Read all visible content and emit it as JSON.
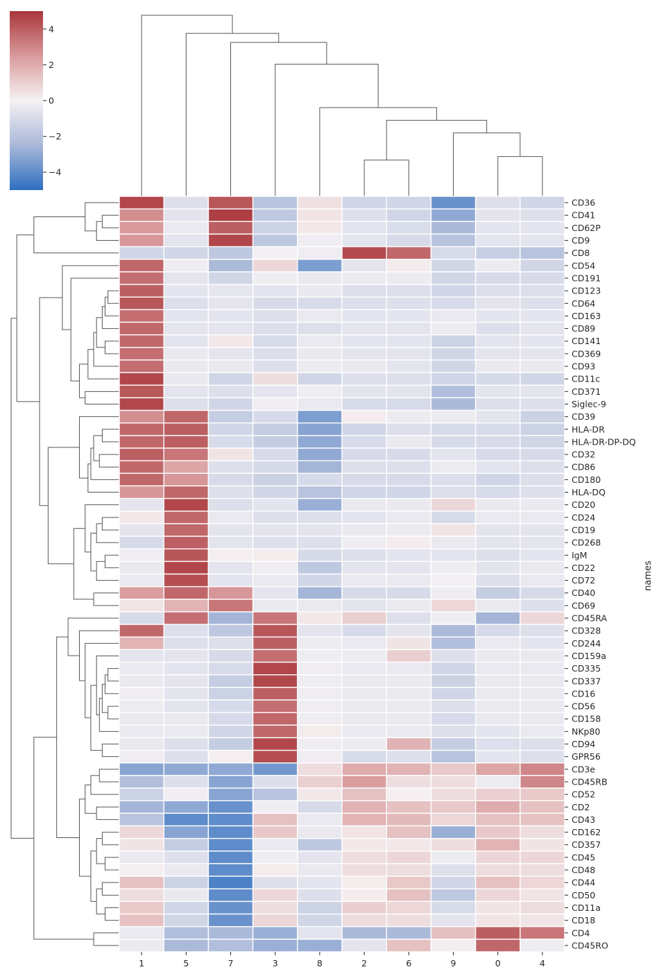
{
  "chart_data": {
    "type": "heatmap",
    "title": "",
    "xlabel": "",
    "ylabel": "names",
    "colormap": "vlag",
    "colormap_stops": [
      "#2e6fc0",
      "#a9b8d9",
      "#f5f2f3",
      "#d99a9c",
      "#a9373b"
    ],
    "vmin": -5,
    "vmax": 5,
    "colorbar_ticks": [
      4,
      2,
      0,
      -2,
      -4
    ],
    "colorbar_labels": [
      "4",
      "2",
      "0",
      "−2",
      "−4"
    ],
    "columns": [
      "1",
      "5",
      "7",
      "3",
      "8",
      "2",
      "6",
      "9",
      "0",
      "4"
    ],
    "rows": [
      "CD36",
      "CD41",
      "CD62P",
      "CD9",
      "CD8",
      "CD54",
      "CD191",
      "CD123",
      "CD64",
      "CD163",
      "CD89",
      "CD141",
      "CD369",
      "CD93",
      "CD11c",
      "CD371",
      "Siglec-9",
      "CD39",
      "HLA-DR",
      "HLA-DR-DP-DQ",
      "CD32",
      "CD86",
      "CD180",
      "HLA-DQ",
      "CD20",
      "CD24",
      "CD19",
      "CD268",
      "IgM",
      "CD22",
      "CD72",
      "CD40",
      "CD69",
      "CD45RA",
      "CD328",
      "CD244",
      "CD159a",
      "CD335",
      "CD337",
      "CD16",
      "CD56",
      "CD158",
      "NKp80",
      "CD94",
      "GPR56",
      "CD3e",
      "CD45RB",
      "CD52",
      "CD2",
      "CD43",
      "CD162",
      "CD357",
      "CD45",
      "CD48",
      "CD44",
      "CD50",
      "CD11a",
      "CD18",
      "CD4",
      "CD45RO"
    ],
    "values": [
      [
        4.6,
        -0.8,
        4.2,
        -2.0,
        0.5,
        -1.2,
        -1.2,
        -3.8,
        -0.8,
        -1.2
      ],
      [
        2.8,
        -0.6,
        4.8,
        -1.8,
        0.4,
        -0.8,
        -1.2,
        -3.0,
        -0.6,
        -0.8
      ],
      [
        2.5,
        -0.4,
        4.0,
        -1.4,
        0.3,
        -0.6,
        -0.9,
        -2.4,
        -0.6,
        -0.6
      ],
      [
        2.6,
        -0.6,
        4.6,
        -1.8,
        -0.2,
        -0.6,
        -1.0,
        -2.0,
        -0.6,
        -0.6
      ],
      [
        -1.2,
        -1.2,
        -1.8,
        -0.1,
        -0.2,
        4.5,
        3.8,
        -1.0,
        -1.5,
        -2.0
      ],
      [
        3.8,
        -0.2,
        -2.4,
        0.8,
        -3.4,
        -0.6,
        0.2,
        -1.2,
        -0.3,
        -1.2
      ],
      [
        3.6,
        -0.6,
        -1.2,
        -0.2,
        -0.4,
        -0.3,
        -0.3,
        -1.2,
        -1.0,
        -1.0
      ],
      [
        4.0,
        -0.6,
        -0.5,
        -0.6,
        -0.4,
        -0.8,
        -0.8,
        -1.2,
        -0.8,
        -0.8
      ],
      [
        4.2,
        -0.8,
        -0.6,
        -1.0,
        -1.0,
        -0.8,
        -0.8,
        -1.0,
        -0.6,
        -0.8
      ],
      [
        3.6,
        -0.6,
        -0.6,
        -0.8,
        -0.4,
        -0.6,
        -0.6,
        -0.4,
        -0.6,
        -0.6
      ],
      [
        3.8,
        -0.6,
        -0.6,
        -0.8,
        -0.8,
        -0.6,
        -0.6,
        -0.3,
        -0.8,
        -0.6
      ],
      [
        3.8,
        -0.6,
        0.3,
        -1.0,
        -0.4,
        -0.6,
        -0.6,
        -1.4,
        -0.6,
        -0.6
      ],
      [
        3.6,
        -0.4,
        -0.6,
        -0.8,
        -0.4,
        -0.6,
        -0.6,
        -1.2,
        -0.6,
        -0.6
      ],
      [
        3.6,
        -0.4,
        -0.4,
        -0.8,
        -0.3,
        -0.4,
        -0.6,
        -1.2,
        -0.4,
        -0.4
      ],
      [
        4.6,
        -0.4,
        -1.2,
        0.6,
        -1.2,
        -0.8,
        -0.8,
        -1.2,
        -1.0,
        -1.2
      ],
      [
        4.2,
        -0.6,
        -0.8,
        -0.6,
        -0.2,
        -0.6,
        -0.6,
        -2.2,
        -0.6,
        -0.6
      ],
      [
        4.6,
        -0.8,
        -1.2,
        -0.2,
        -0.4,
        -1.0,
        -1.0,
        -2.4,
        -0.8,
        -0.8
      ],
      [
        2.8,
        3.8,
        -1.6,
        -1.0,
        -3.4,
        0.2,
        -0.3,
        -0.3,
        -0.6,
        -1.4
      ],
      [
        3.8,
        4.0,
        -1.2,
        -1.6,
        -3.2,
        -1.2,
        -0.8,
        -1.0,
        -1.0,
        -1.4
      ],
      [
        3.8,
        4.0,
        -1.0,
        -1.6,
        -3.0,
        -1.0,
        -0.4,
        -1.0,
        -1.0,
        -1.2
      ],
      [
        4.0,
        3.4,
        0.4,
        -1.0,
        -3.0,
        -1.0,
        -1.0,
        -0.6,
        -1.0,
        -1.0
      ],
      [
        3.8,
        2.2,
        -0.8,
        -1.0,
        -2.6,
        -0.8,
        -0.8,
        -0.3,
        -0.6,
        -0.8
      ],
      [
        3.8,
        2.6,
        -1.0,
        -1.4,
        -1.0,
        -1.0,
        -1.0,
        -0.8,
        -1.2,
        -0.8
      ],
      [
        2.6,
        3.8,
        -0.8,
        -1.2,
        -2.0,
        -1.2,
        -1.2,
        -0.8,
        -1.0,
        -0.8
      ],
      [
        -0.6,
        4.6,
        -0.8,
        -0.6,
        -2.8,
        -0.4,
        -0.4,
        0.8,
        -0.4,
        -0.4
      ],
      [
        0.3,
        3.8,
        -0.4,
        -0.8,
        -0.8,
        -0.6,
        -0.4,
        -1.0,
        -0.4,
        -0.4
      ],
      [
        -0.6,
        3.8,
        -0.6,
        -0.6,
        -0.6,
        -0.4,
        -0.3,
        0.4,
        -0.6,
        -0.6
      ],
      [
        -1.0,
        4.0,
        -0.6,
        -0.8,
        -0.8,
        -0.2,
        0.2,
        -0.4,
        -0.6,
        -0.6
      ],
      [
        -0.2,
        4.2,
        0.1,
        0.2,
        -1.0,
        -0.8,
        -0.6,
        -0.6,
        -0.8,
        -0.6
      ],
      [
        -0.4,
        4.6,
        -0.6,
        -0.2,
        -1.8,
        -0.6,
        -0.6,
        -0.2,
        -0.6,
        -0.4
      ],
      [
        -0.4,
        4.4,
        -0.6,
        -0.4,
        -1.2,
        -0.4,
        -0.4,
        -0.1,
        -0.8,
        -0.4
      ],
      [
        2.4,
        3.8,
        2.6,
        -0.6,
        -2.6,
        -1.0,
        -1.0,
        -0.2,
        -1.6,
        -1.0
      ],
      [
        0.4,
        1.8,
        3.4,
        -0.4,
        -0.4,
        -0.6,
        -0.4,
        0.8,
        -0.4,
        -0.8
      ],
      [
        -1.0,
        3.6,
        -2.6,
        3.4,
        0.3,
        1.0,
        -0.8,
        -0.2,
        -2.6,
        0.8
      ],
      [
        3.8,
        -0.8,
        -1.8,
        4.2,
        -0.6,
        -1.0,
        -0.6,
        -2.4,
        -1.0,
        -0.8
      ],
      [
        1.8,
        -0.8,
        -0.8,
        4.0,
        -0.3,
        -0.4,
        0.4,
        -2.2,
        -0.4,
        -0.6
      ],
      [
        -0.6,
        -0.6,
        -1.0,
        3.6,
        -0.2,
        -0.3,
        1.0,
        -0.8,
        -0.4,
        -0.4
      ],
      [
        -0.4,
        -0.6,
        -1.0,
        4.6,
        -0.2,
        -0.4,
        -0.4,
        -1.2,
        -0.4,
        -0.4
      ],
      [
        -0.4,
        -0.6,
        -1.6,
        4.6,
        -0.2,
        -0.4,
        -0.4,
        -1.4,
        -0.4,
        -0.4
      ],
      [
        -0.2,
        -0.6,
        -1.4,
        4.0,
        -0.2,
        -0.4,
        -0.4,
        -1.2,
        -0.4,
        -0.4
      ],
      [
        -0.3,
        -0.6,
        -1.0,
        3.6,
        -0.2,
        -0.4,
        -0.4,
        -0.8,
        -0.4,
        -0.4
      ],
      [
        -0.4,
        -0.4,
        -1.0,
        3.8,
        -0.2,
        -0.4,
        -0.4,
        -1.0,
        -0.4,
        -0.4
      ],
      [
        -0.4,
        -0.4,
        -1.2,
        3.8,
        0.2,
        -0.4,
        -0.4,
        -0.8,
        -0.6,
        -0.4
      ],
      [
        -0.4,
        -0.8,
        -1.6,
        4.6,
        -0.2,
        -0.3,
        1.8,
        -1.6,
        -0.8,
        -0.8
      ],
      [
        -0.2,
        -0.8,
        0.1,
        4.4,
        -0.2,
        -1.0,
        -0.8,
        -2.0,
        -0.6,
        -0.8
      ],
      [
        -3.2,
        -3.0,
        -3.0,
        -3.6,
        0.6,
        2.0,
        1.8,
        1.2,
        2.2,
        3.0
      ],
      [
        -2.2,
        -0.8,
        -3.2,
        -0.8,
        1.0,
        2.4,
        0.6,
        0.6,
        -0.3,
        3.0
      ],
      [
        -1.4,
        -0.2,
        -3.2,
        -2.0,
        0.3,
        1.4,
        0.1,
        0.6,
        1.0,
        1.2
      ],
      [
        -2.6,
        -3.0,
        -3.8,
        -0.2,
        -1.0,
        1.8,
        1.4,
        1.2,
        2.0,
        1.4
      ],
      [
        -2.0,
        -4.0,
        -4.0,
        1.4,
        -0.4,
        1.8,
        1.6,
        0.8,
        1.4,
        1.4
      ],
      [
        0.8,
        -3.2,
        -4.0,
        1.2,
        -0.4,
        0.4,
        1.4,
        -2.8,
        1.2,
        0.6
      ],
      [
        0.4,
        -1.6,
        -4.0,
        -0.4,
        -1.8,
        0.3,
        0.3,
        0.6,
        1.8,
        0.4
      ],
      [
        -0.4,
        -0.8,
        -4.0,
        -0.2,
        -0.6,
        0.6,
        0.8,
        -0.3,
        0.8,
        0.8
      ],
      [
        0.1,
        -0.4,
        -4.0,
        0.2,
        -0.4,
        0.6,
        0.6,
        -0.8,
        0.6,
        0.6
      ],
      [
        1.4,
        -1.4,
        -4.4,
        -0.8,
        -0.6,
        0.2,
        1.2,
        -1.2,
        1.4,
        0.8
      ],
      [
        0.6,
        -0.4,
        -4.0,
        0.8,
        -0.8,
        0.2,
        1.4,
        -1.8,
        0.8,
        0.4
      ],
      [
        1.2,
        -1.2,
        -3.8,
        0.6,
        -1.4,
        1.0,
        0.8,
        -1.0,
        0.4,
        0.6
      ],
      [
        1.4,
        -1.2,
        -3.8,
        0.8,
        -1.2,
        0.6,
        0.6,
        -0.6,
        0.4,
        0.4
      ],
      [
        -0.4,
        -2.2,
        -2.4,
        -2.8,
        -0.6,
        -2.4,
        -2.4,
        1.4,
        4.0,
        3.4
      ],
      [
        -0.3,
        -2.4,
        -2.2,
        -2.8,
        -2.8,
        -0.6,
        1.4,
        0.1,
        3.8,
        -0.2
      ]
    ]
  }
}
